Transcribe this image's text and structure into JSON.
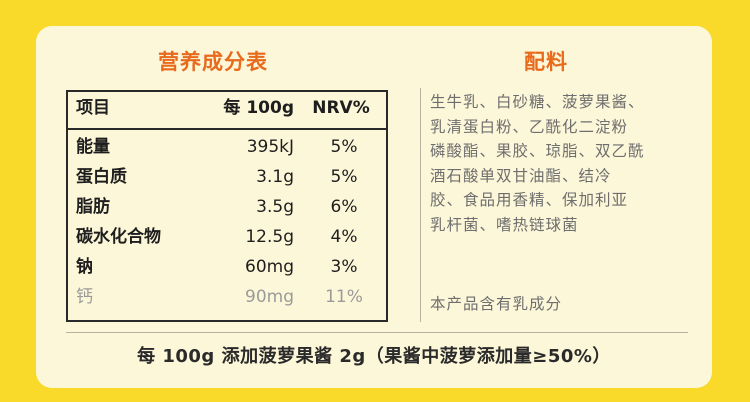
{
  "nutrition": {
    "title": "营养成分表",
    "headers": {
      "item": "项目",
      "per": "每 100g",
      "nrv": "NRV%"
    },
    "rows": [
      {
        "name": "能量",
        "amount": "395kJ",
        "nrv": "5%"
      },
      {
        "name": "蛋白质",
        "amount": "3.1g",
        "nrv": "5%"
      },
      {
        "name": "脂肪",
        "amount": "3.5g",
        "nrv": "6%"
      },
      {
        "name": "碳水化合物",
        "amount": "12.5g",
        "nrv": "4%"
      },
      {
        "name": "钠",
        "amount": "60mg",
        "nrv": "3%"
      },
      {
        "name": "钙",
        "amount": "90mg",
        "nrv": "11%"
      }
    ]
  },
  "ingredients": {
    "title": "配料",
    "lines": [
      "生牛乳、白砂糖、菠萝果酱、",
      "乳清蛋白粉、乙酰化二淀粉",
      "磷酸酯、果胶、琼脂、双乙酰",
      "酒石酸单双甘油酯、结冷",
      "胶、食品用香精、保加利亚",
      "乳杆菌、嗜热链球菌"
    ],
    "note": "本产品含有乳成分"
  },
  "footer": "每 100g 添加菠萝果酱 2g（果酱中菠萝添加量≥50%）",
  "colors": {
    "background": "#f9d92a",
    "panel": "#fdf7d9",
    "title_orange": "#e86a1d",
    "text_dark": "#1e1e1e",
    "text_gray": "#6e6e6e"
  }
}
